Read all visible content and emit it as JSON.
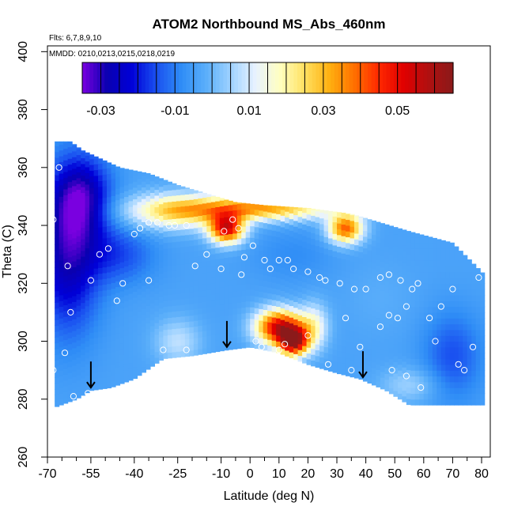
{
  "chart_data": {
    "type": "heatmap",
    "title": "ATOM2 Northbound MS_Abs_460nm",
    "notes": [
      "Flts: 6,7,8,9,10",
      "MMDD: 0210,0213,0215,0218,0219"
    ],
    "xlabel": "Latitude (deg N)",
    "ylabel": "Theta (C)",
    "xlim": [
      -70,
      83
    ],
    "ylim": [
      260,
      402
    ],
    "x_ticks": [
      -70,
      -55,
      -40,
      -25,
      -10,
      0,
      10,
      20,
      30,
      40,
      50,
      60,
      70,
      80
    ],
    "x_minor_ticks": [
      -65,
      -60,
      -50,
      -45,
      -35,
      -30,
      -20,
      -15,
      -5,
      5,
      15,
      25,
      35,
      45,
      55,
      65,
      75
    ],
    "y_ticks": [
      260,
      280,
      300,
      320,
      340,
      360,
      380,
      400
    ],
    "colorbar": {
      "min": -0.035,
      "max": 0.065,
      "step": 0.005,
      "tick_values": [
        -0.03,
        -0.01,
        0.01,
        0.03,
        0.05
      ],
      "tick_labels": [
        "-0.03",
        "-0.01",
        "0.01",
        "0.03",
        "0.05"
      ],
      "stops": [
        "#7a00e0",
        "#0a00b0",
        "#0000d8",
        "#1a50f0",
        "#2f8df6",
        "#5aaefa",
        "#9ed2ff",
        "#e8f2ff",
        "#ffffc0",
        "#ffe060",
        "#ffb010",
        "#ff7000",
        "#ff2800",
        "#e00000",
        "#b01010",
        "#8b1a1a"
      ]
    },
    "profile_arrows_lat": [
      -55,
      -8,
      39
    ],
    "domain_top": [
      [
        -69,
        369
      ],
      [
        -62,
        369
      ],
      [
        -58,
        366
      ],
      [
        -45,
        360
      ],
      [
        -35,
        358
      ],
      [
        -25,
        354
      ],
      [
        -15,
        351
      ],
      [
        -5,
        348
      ],
      [
        5,
        347
      ],
      [
        20,
        346
      ],
      [
        35,
        344
      ],
      [
        55,
        338
      ],
      [
        70,
        334
      ],
      [
        81,
        323
      ]
    ],
    "domain_bottom": [
      [
        81,
        278
      ],
      [
        55,
        278
      ],
      [
        47,
        283
      ],
      [
        38,
        287
      ],
      [
        30,
        289
      ],
      [
        20,
        292
      ],
      [
        10,
        296
      ],
      [
        0,
        298
      ],
      [
        -8,
        297
      ],
      [
        -20,
        295
      ],
      [
        -30,
        294
      ],
      [
        -40,
        287
      ],
      [
        -48,
        284
      ],
      [
        -55,
        283
      ],
      [
        -60,
        280
      ],
      [
        -68,
        277
      ]
    ],
    "fields": [
      {
        "lat": -63,
        "theta": 330,
        "sig": [
          11,
          26
        ],
        "value": -0.028
      },
      {
        "lat": -58,
        "theta": 350,
        "sig": [
          10,
          14
        ],
        "value": -0.025
      },
      {
        "lat": -45,
        "theta": 330,
        "sig": [
          12,
          10
        ],
        "value": -0.015
      },
      {
        "lat": -25,
        "theta": 345,
        "sig": [
          18,
          6
        ],
        "value": 0.025
      },
      {
        "lat": -8,
        "theta": 339,
        "sig": [
          6,
          5
        ],
        "value": 0.05
      },
      {
        "lat": 5,
        "theta": 346,
        "sig": [
          25,
          4
        ],
        "value": 0.032
      },
      {
        "lat": 33,
        "theta": 339,
        "sig": [
          6,
          5
        ],
        "value": 0.04
      },
      {
        "lat": 10,
        "theta": 305,
        "sig": [
          8,
          6
        ],
        "value": 0.052
      },
      {
        "lat": 15,
        "theta": 300,
        "sig": [
          5,
          5
        ],
        "value": 0.055
      },
      {
        "lat": 22,
        "theta": 305,
        "sig": [
          5,
          8
        ],
        "value": 0.015
      },
      {
        "lat": -25,
        "theta": 300,
        "sig": [
          8,
          8
        ],
        "value": 0.008
      },
      {
        "lat": 15,
        "theta": 330,
        "sig": [
          14,
          9
        ],
        "value": -0.008
      },
      {
        "lat": 45,
        "theta": 315,
        "sig": [
          12,
          12
        ],
        "value": -0.002
      },
      {
        "lat": 70,
        "theta": 295,
        "sig": [
          10,
          15
        ],
        "value": -0.015
      },
      {
        "lat": 55,
        "theta": 285,
        "sig": [
          10,
          6
        ],
        "value": 0.005
      }
    ],
    "background_value": -0.004,
    "points": [
      [
        -69,
        368
      ],
      [
        -66,
        360
      ],
      [
        -68,
        342
      ],
      [
        -69,
        338
      ],
      [
        -63,
        326
      ],
      [
        -62,
        310
      ],
      [
        -64,
        296
      ],
      [
        -68,
        290
      ],
      [
        -61,
        281
      ],
      [
        -56,
        282
      ],
      [
        -55,
        321
      ],
      [
        -52,
        330
      ],
      [
        -49,
        332
      ],
      [
        -46,
        314
      ],
      [
        -44,
        320
      ],
      [
        -40,
        337
      ],
      [
        -38,
        339
      ],
      [
        -35,
        341
      ],
      [
        -32,
        341
      ],
      [
        -28,
        340
      ],
      [
        -26,
        340
      ],
      [
        -22,
        340
      ],
      [
        -19,
        326
      ],
      [
        -15,
        330
      ],
      [
        -9,
        338
      ],
      [
        -6,
        342
      ],
      [
        -4,
        339
      ],
      [
        -2,
        329
      ],
      [
        -22,
        297
      ],
      [
        -30,
        297
      ],
      [
        -35,
        321
      ],
      [
        -10,
        325
      ],
      [
        -3,
        323
      ],
      [
        1,
        333
      ],
      [
        5,
        328
      ],
      [
        7,
        325
      ],
      [
        10,
        328
      ],
      [
        13,
        328
      ],
      [
        15,
        325
      ],
      [
        20,
        324
      ],
      [
        26,
        321
      ],
      [
        31,
        320
      ],
      [
        36,
        318
      ],
      [
        2,
        300
      ],
      [
        4,
        298
      ],
      [
        10,
        297
      ],
      [
        20,
        302
      ],
      [
        12,
        299
      ],
      [
        27,
        292
      ],
      [
        35,
        290
      ],
      [
        40,
        318
      ],
      [
        45,
        322
      ],
      [
        48,
        323
      ],
      [
        52,
        321
      ],
      [
        56,
        318
      ],
      [
        45,
        305
      ],
      [
        48,
        309
      ],
      [
        51,
        308
      ],
      [
        54,
        312
      ],
      [
        58,
        320
      ],
      [
        62,
        308
      ],
      [
        64,
        300
      ],
      [
        66,
        312
      ],
      [
        70,
        318
      ],
      [
        72,
        292
      ],
      [
        74,
        290
      ],
      [
        77,
        298
      ],
      [
        79,
        322
      ],
      [
        49,
        290
      ],
      [
        54,
        288
      ],
      [
        59,
        284
      ],
      [
        38,
        298
      ],
      [
        24,
        322
      ],
      [
        33,
        308
      ]
    ]
  }
}
